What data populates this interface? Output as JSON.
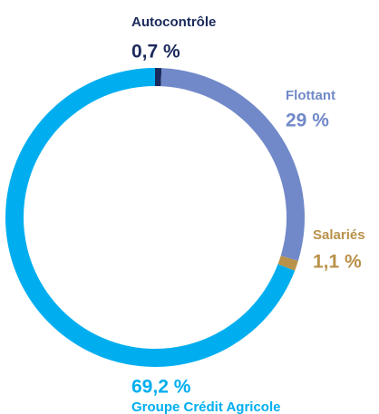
{
  "chart_data": {
    "type": "donut",
    "categories": [
      "Autocontrôle",
      "Flottant",
      "Salariés",
      "Groupe Crédit Agricole"
    ],
    "values": [
      0.7,
      29,
      1.1,
      69.2
    ],
    "value_labels": [
      "0,7 %",
      "29 %",
      "1,1 %",
      "69,2 %"
    ],
    "colors": [
      "#1b2a5c",
      "#7189c9",
      "#b8914a",
      "#00aeef"
    ]
  }
}
